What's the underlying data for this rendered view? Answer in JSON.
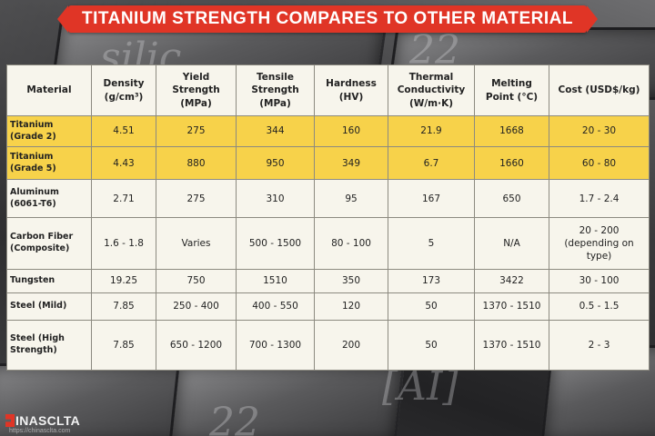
{
  "title": "TITANIUM STRENGTH COMPARES TO OTHER MATERIAL",
  "colors": {
    "title_bg": "#e03526",
    "highlight_row": "#f7d24a",
    "cell_bg": "#f7f5ec"
  },
  "table": {
    "headers": [
      "Material",
      "Density (g/cm³)",
      "Yield Strength (MPa)",
      "Tensile Strength (MPa)",
      "Hardness (HV)",
      "Thermal Conductivity (W/m·K)",
      "Melting Point (°C)",
      "Cost (USD$/kg)"
    ],
    "rows": [
      [
        "Titanium (Grade 2)",
        "4.51",
        "275",
        "344",
        "160",
        "21.9",
        "1668",
        "20 - 30"
      ],
      [
        "Titanium (Grade 5)",
        "4.43",
        "880",
        "950",
        "349",
        "6.7",
        "1660",
        "60 - 80"
      ],
      [
        "Aluminum (6061-T6)",
        "2.71",
        "275",
        "310",
        "95",
        "167",
        "650",
        "1.7 - 2.4"
      ],
      [
        "Carbon Fiber (Composite)",
        "1.6 - 1.8",
        "Varies",
        "500 - 1500",
        "80 - 100",
        "5",
        "N/A",
        "20 - 200 (depending on type)"
      ],
      [
        "Tungsten",
        "19.25",
        "750",
        "1510",
        "350",
        "173",
        "3422",
        "30 - 100"
      ],
      [
        "Steel (Mild)",
        "7.85",
        "250 - 400",
        "400 - 550",
        "120",
        "50",
        "1370 - 1510",
        "0.5 - 1.5"
      ],
      [
        "Steel (High Strength)",
        "7.85",
        "650 - 1200",
        "700 - 1300",
        "200",
        "50",
        "1370 - 1510",
        "2 - 3"
      ]
    ],
    "highlighted_rows": [
      0,
      1
    ]
  },
  "logo": {
    "brand": "INASCLTA",
    "url": "https://chinasclta.com"
  }
}
